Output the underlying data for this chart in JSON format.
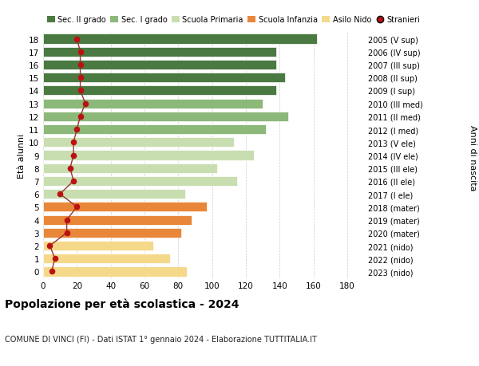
{
  "ages": [
    0,
    1,
    2,
    3,
    4,
    5,
    6,
    7,
    8,
    9,
    10,
    11,
    12,
    13,
    14,
    15,
    16,
    17,
    18
  ],
  "bar_values": [
    85,
    75,
    65,
    82,
    88,
    97,
    84,
    115,
    103,
    125,
    113,
    132,
    145,
    130,
    138,
    143,
    138,
    138,
    162
  ],
  "stranieri": [
    5,
    7,
    4,
    14,
    14,
    20,
    10,
    18,
    16,
    18,
    18,
    20,
    22,
    25,
    22,
    22,
    22,
    22,
    20
  ],
  "right_labels": [
    "2023 (nido)",
    "2022 (nido)",
    "2021 (nido)",
    "2020 (mater)",
    "2019 (mater)",
    "2018 (mater)",
    "2017 (I ele)",
    "2016 (II ele)",
    "2015 (III ele)",
    "2014 (IV ele)",
    "2013 (V ele)",
    "2012 (I med)",
    "2011 (II med)",
    "2010 (III med)",
    "2009 (I sup)",
    "2008 (II sup)",
    "2007 (III sup)",
    "2006 (IV sup)",
    "2005 (V sup)"
  ],
  "bar_colors": [
    "#F5D98B",
    "#F5D98B",
    "#F5D98B",
    "#E8873A",
    "#E8873A",
    "#E8873A",
    "#C8DEB0",
    "#C8DEB0",
    "#C8DEB0",
    "#C8DEB0",
    "#C8DEB0",
    "#8CB87A",
    "#8CB87A",
    "#8CB87A",
    "#4A7A42",
    "#4A7A42",
    "#4A7A42",
    "#4A7A42",
    "#4A7A42"
  ],
  "legend_labels": [
    "Sec. II grado",
    "Sec. I grado",
    "Scuola Primaria",
    "Scuola Infanzia",
    "Asilo Nido",
    "Stranieri"
  ],
  "legend_colors": [
    "#4A7A42",
    "#8CB87A",
    "#C8DEB0",
    "#E8873A",
    "#F5D98B",
    "#BB1111"
  ],
  "xlabel_ticks": [
    0,
    20,
    40,
    60,
    80,
    100,
    120,
    140,
    160,
    180
  ],
  "xlim": [
    0,
    190
  ],
  "ylabel": "Età alunni",
  "right_ylabel": "Anni di nascita",
  "title": "Popolazione per età scolastica - 2024",
  "subtitle": "COMUNE DI VINCI (FI) - Dati ISTAT 1° gennaio 2024 - Elaborazione TUTTITALIA.IT",
  "bg_color": "#FFFFFF",
  "grid_color": "#CCCCCC",
  "stranieri_color": "#BB1111",
  "stranieri_line_color": "#993333"
}
